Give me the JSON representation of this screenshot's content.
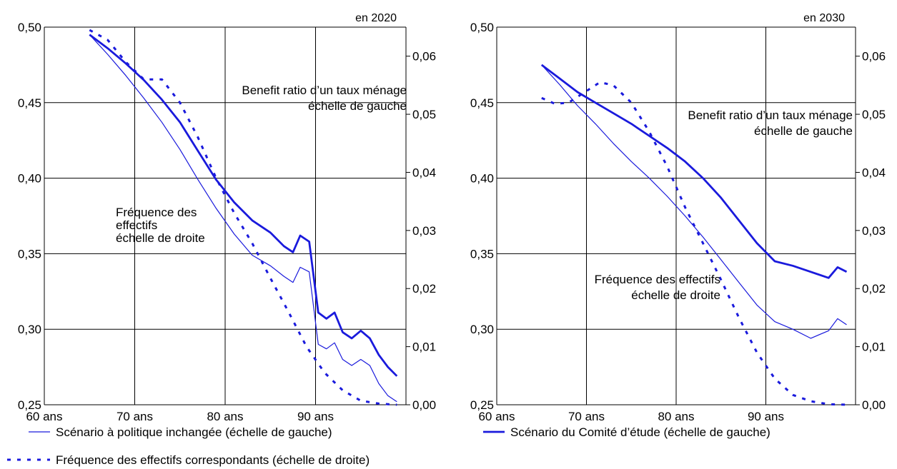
{
  "legend": {
    "items": [
      {
        "label": "Scénario à politique inchangée (échelle de gauche)",
        "style": "thin"
      },
      {
        "label": "Scénario du Comité d’étude (échelle de gauche)",
        "style": "thick"
      },
      {
        "label": "Fréquence des effectifs correspondants (échelle de droite)",
        "style": "dotted"
      }
    ]
  },
  "colors": {
    "series": "#1a1adc",
    "grid": "#000000"
  },
  "chart_data": [
    {
      "type": "line",
      "year_label": "en 2020",
      "x_ticks": [
        "60 ans",
        "70 ans",
        "80 ans",
        "90 ans"
      ],
      "x_tick_values": [
        60,
        70,
        80,
        90
      ],
      "xlim": [
        60,
        100
      ],
      "left_axis": {
        "ylim": [
          0.25,
          0.5
        ],
        "ticks": [
          "0,25",
          "0,30",
          "0,35",
          "0,40",
          "0,45",
          "0,50"
        ],
        "tick_values": [
          0.25,
          0.3,
          0.35,
          0.4,
          0.45,
          0.5
        ]
      },
      "right_axis": {
        "ylim": [
          0,
          0.065
        ],
        "ticks": [
          "0,00",
          "0,01",
          "0,02",
          "0,03",
          "0,04",
          "0,05",
          "0,06"
        ],
        "tick_values": [
          0,
          0.01,
          0.02,
          0.03,
          0.04,
          0.05,
          0.06
        ]
      },
      "annotations": [
        {
          "lines": [
            "Benefit ratio d’un taux ménage",
            "échelle de gauche"
          ]
        },
        {
          "lines": [
            "Fréquence des",
            "effectifs",
            "échelle de droite"
          ]
        }
      ],
      "series": [
        {
          "name": "Scénario à politique inchangée (échelle de gauche)",
          "axis": "left",
          "x": [
            65,
            67,
            69,
            71,
            73,
            75,
            77,
            79,
            81,
            83,
            85,
            86.5,
            87.5,
            88.3,
            89.3,
            90.3,
            91.2,
            92.1,
            93,
            94,
            95,
            96,
            97,
            98,
            99
          ],
          "y": [
            0.495,
            0.482,
            0.468,
            0.453,
            0.437,
            0.419,
            0.399,
            0.38,
            0.363,
            0.349,
            0.342,
            0.335,
            0.331,
            0.341,
            0.338,
            0.29,
            0.287,
            0.291,
            0.28,
            0.276,
            0.28,
            0.276,
            0.264,
            0.256,
            0.252
          ]
        },
        {
          "name": "Scénario du Comité d’étude (échelle de gauche)",
          "axis": "left",
          "x": [
            65,
            67,
            69,
            71,
            73,
            75,
            77,
            79,
            81,
            83,
            85,
            86.5,
            87.5,
            88.3,
            89.3,
            90.3,
            91.2,
            92.1,
            93,
            94,
            95,
            96,
            97,
            98,
            99
          ],
          "y": [
            0.495,
            0.486,
            0.476,
            0.465,
            0.452,
            0.437,
            0.418,
            0.399,
            0.384,
            0.372,
            0.364,
            0.355,
            0.351,
            0.362,
            0.358,
            0.311,
            0.307,
            0.311,
            0.298,
            0.294,
            0.299,
            0.294,
            0.283,
            0.275,
            0.269
          ]
        },
        {
          "name": "Fréquence des effectifs correspondants (échelle de droite)",
          "axis": "right",
          "x": [
            65,
            67,
            69,
            71,
            73,
            75,
            77,
            79,
            81,
            83,
            85,
            87,
            89,
            91,
            93,
            95,
            97,
            99
          ],
          "y": [
            0.0645,
            0.0628,
            0.059,
            0.056,
            0.056,
            0.052,
            0.046,
            0.039,
            0.033,
            0.0278,
            0.0218,
            0.016,
            0.01,
            0.0055,
            0.0025,
            0.0007,
            0.0002,
            0.0
          ]
        }
      ]
    },
    {
      "type": "line",
      "year_label": "en 2030",
      "x_ticks": [
        "60 ans",
        "70 ans",
        "80 ans",
        "90 ans"
      ],
      "x_tick_values": [
        60,
        70,
        80,
        90
      ],
      "xlim": [
        60,
        100
      ],
      "left_axis": {
        "ylim": [
          0.25,
          0.5
        ],
        "ticks": [
          "0,25",
          "0,30",
          "0,35",
          "0,40",
          "0,45",
          "0,50"
        ],
        "tick_values": [
          0.25,
          0.3,
          0.35,
          0.4,
          0.45,
          0.5
        ]
      },
      "right_axis": {
        "ylim": [
          0,
          0.065
        ],
        "ticks": [
          "0,00",
          "0,01",
          "0,02",
          "0,03",
          "0,04",
          "0,05",
          "0,06"
        ],
        "tick_values": [
          0,
          0.01,
          0.02,
          0.03,
          0.04,
          0.05,
          0.06
        ]
      },
      "annotations": [
        {
          "lines": [
            "Benefit ratio d’un taux ménage",
            "échelle de gauche"
          ]
        },
        {
          "lines": [
            "Fréquence des effectifs",
            "échelle de droite"
          ]
        }
      ],
      "series": [
        {
          "name": "Scénario à politique inchangée (échelle de gauche)",
          "axis": "left",
          "x": [
            65,
            67,
            69,
            71,
            73,
            75,
            77,
            79,
            81,
            83,
            85,
            87,
            89,
            91,
            93,
            95,
            97,
            98,
            99
          ],
          "y": [
            0.475,
            0.462,
            0.448,
            0.436,
            0.423,
            0.411,
            0.4,
            0.388,
            0.375,
            0.361,
            0.346,
            0.331,
            0.316,
            0.305,
            0.3,
            0.294,
            0.299,
            0.307,
            0.303
          ]
        },
        {
          "name": "Scénario du Comité d’étude (échelle de gauche)",
          "axis": "left",
          "x": [
            65,
            67,
            69,
            71,
            73,
            75,
            77,
            79,
            81,
            83,
            85,
            87,
            89,
            91,
            93,
            95,
            97,
            98,
            99
          ],
          "y": [
            0.475,
            0.466,
            0.457,
            0.45,
            0.443,
            0.436,
            0.428,
            0.42,
            0.411,
            0.4,
            0.387,
            0.372,
            0.357,
            0.345,
            0.342,
            0.338,
            0.334,
            0.341,
            0.338
          ]
        },
        {
          "name": "Fréquence des effectifs correspondants (échelle de droite)",
          "axis": "right",
          "x": [
            65,
            66.5,
            68,
            70,
            71.5,
            73,
            75,
            77,
            79,
            81,
            83,
            85,
            87,
            89,
            91,
            93,
            95,
            97,
            99
          ],
          "y": [
            0.0528,
            0.0518,
            0.052,
            0.054,
            0.0555,
            0.055,
            0.052,
            0.047,
            0.041,
            0.034,
            0.0278,
            0.0215,
            0.015,
            0.009,
            0.0045,
            0.0017,
            0.0006,
            0.0001,
            0.0
          ]
        }
      ]
    }
  ]
}
